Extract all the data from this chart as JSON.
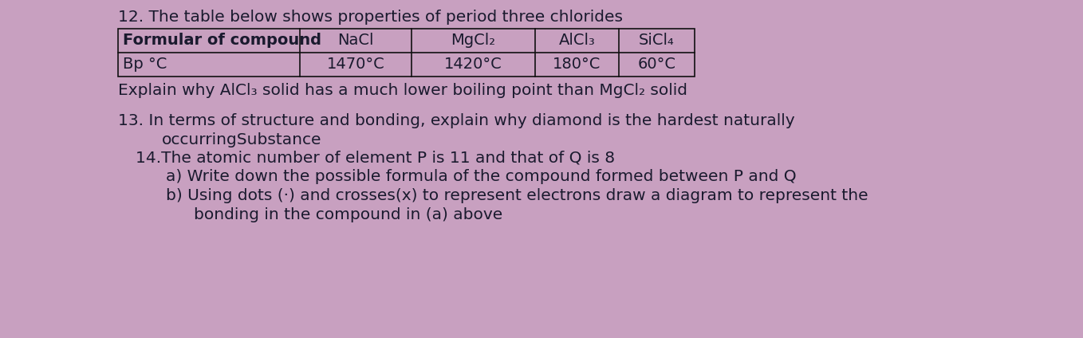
{
  "background_color": "#c8a0c0",
  "text_color": "#1a1a2e",
  "table_border_color": "#111111",
  "title": "12. The table below shows properties of period three chlorides",
  "table_headers": [
    "Formular of compound",
    "NaCl",
    "MgCl₂",
    "AlCl₃",
    "SiCl₄"
  ],
  "table_row_label": "Bp °C",
  "table_row_values": [
    "1470°C",
    "1420°C",
    "180°C",
    "60°C"
  ],
  "explain_line": "Explain why AlCl₃ solid has a much lower boiling point than MgCl₂ solid",
  "q13_line1": "13. In terms of structure and bonding, explain why diamond is the hardest naturally",
  "q13_line2": "occurringSubstance",
  "q14_line1": "14.The atomic number of element P is 11 and that of Q is 8",
  "q14_line2": "a) Write down the possible formula of the compound formed between P and Q",
  "q14_line3": "b) Using dots (·) and crosses(x) to represent electrons draw a diagram to represent the",
  "q14_line4": "bonding in the compound in (a) above",
  "font_size": 14.5,
  "font_size_table": 14.0
}
